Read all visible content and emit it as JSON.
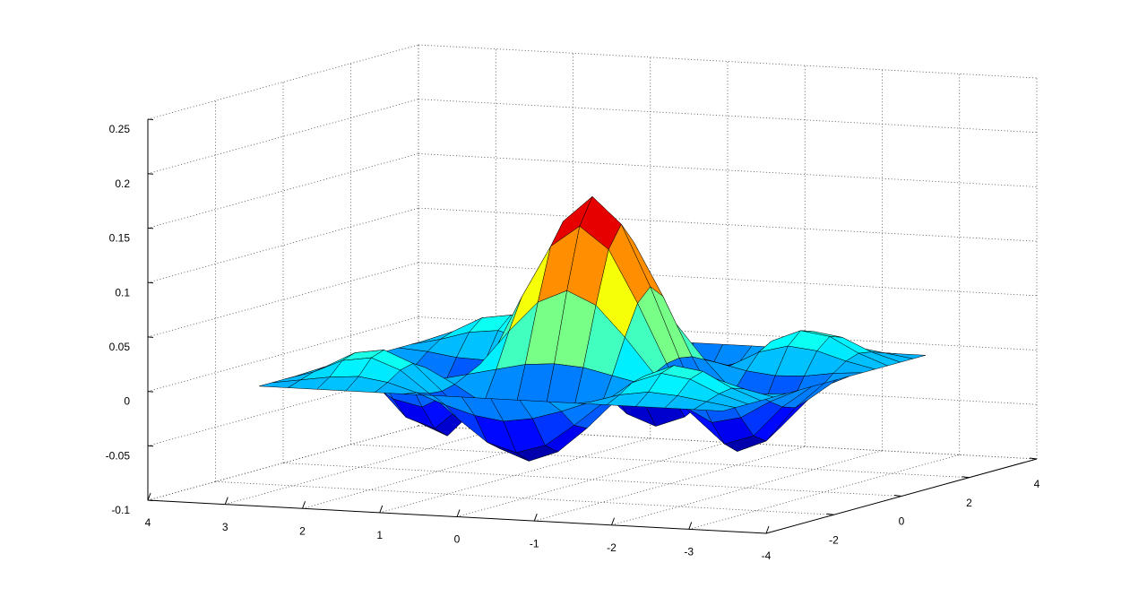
{
  "chart_data": {
    "type": "surface",
    "colormap": "jet",
    "grid": true,
    "x": [
      -3,
      -2.625,
      -2.25,
      -1.875,
      -1.5,
      -1.125,
      -0.75,
      -0.375,
      0,
      0.375,
      0.75,
      1.125,
      1.5,
      1.875,
      2.25,
      2.625,
      3
    ],
    "y": [
      -3,
      -2.625,
      -2.25,
      -1.875,
      -1.5,
      -1.125,
      -0.75,
      -0.375,
      0,
      0.375,
      0.75,
      1.125,
      1.5,
      1.875,
      2.25,
      2.625,
      3
    ],
    "z": [
      [
        0,
        0,
        0,
        0,
        0,
        0,
        0,
        0,
        0,
        0,
        0,
        0,
        0,
        0,
        0,
        0,
        0
      ],
      [
        0,
        0.004,
        0.008,
        0.01,
        0.006,
        -0.002,
        -0.012,
        -0.02,
        -0.024,
        -0.02,
        -0.012,
        -0.002,
        0.006,
        0.01,
        0.008,
        0.004,
        0
      ],
      [
        0,
        0.008,
        0.02,
        0.024,
        0.014,
        -0.006,
        -0.028,
        -0.048,
        -0.056,
        -0.048,
        -0.028,
        -0.006,
        0.014,
        0.024,
        0.02,
        0.008,
        0
      ],
      [
        0,
        0.01,
        0.024,
        0.028,
        0.017,
        -0.007,
        -0.034,
        -0.057,
        -0.067,
        -0.057,
        -0.034,
        -0.007,
        0.017,
        0.028,
        0.024,
        0.01,
        0
      ],
      [
        0,
        0.006,
        0.014,
        0.017,
        0.01,
        -0.004,
        -0.02,
        -0.034,
        -0.04,
        -0.034,
        -0.02,
        -0.004,
        0.01,
        0.017,
        0.014,
        0.006,
        0
      ],
      [
        0,
        -0.002,
        -0.006,
        -0.007,
        -0.004,
        0.002,
        0.008,
        0.014,
        0.016,
        0.014,
        0.008,
        0.002,
        -0.004,
        -0.007,
        -0.006,
        -0.002,
        0
      ],
      [
        0,
        -0.012,
        -0.028,
        -0.034,
        -0.02,
        0.008,
        0.04,
        0.068,
        0.08,
        0.068,
        0.04,
        0.008,
        -0.02,
        -0.034,
        -0.028,
        -0.012,
        0
      ],
      [
        0,
        -0.02,
        -0.048,
        -0.057,
        -0.034,
        0.014,
        0.068,
        0.116,
        0.136,
        0.116,
        0.068,
        0.014,
        -0.034,
        -0.057,
        -0.048,
        -0.02,
        0
      ],
      [
        0,
        -0.024,
        -0.056,
        -0.067,
        -0.04,
        0.016,
        0.08,
        0.136,
        0.16,
        0.136,
        0.08,
        0.016,
        -0.04,
        -0.067,
        -0.056,
        -0.024,
        0
      ],
      [
        0,
        -0.02,
        -0.048,
        -0.057,
        -0.034,
        0.014,
        0.068,
        0.116,
        0.136,
        0.116,
        0.068,
        0.014,
        -0.034,
        -0.057,
        -0.048,
        -0.02,
        0
      ],
      [
        0,
        -0.012,
        -0.028,
        -0.034,
        -0.02,
        0.008,
        0.04,
        0.068,
        0.08,
        0.068,
        0.04,
        0.008,
        -0.02,
        -0.034,
        -0.028,
        -0.012,
        0
      ],
      [
        0,
        -0.002,
        -0.006,
        -0.007,
        -0.004,
        0.002,
        0.008,
        0.014,
        0.016,
        0.014,
        0.008,
        0.002,
        -0.004,
        -0.007,
        -0.006,
        -0.002,
        0
      ],
      [
        0,
        0.006,
        0.014,
        0.017,
        0.01,
        -0.004,
        -0.02,
        -0.034,
        -0.04,
        -0.034,
        -0.02,
        -0.004,
        0.01,
        0.017,
        0.014,
        0.006,
        0
      ],
      [
        0,
        0.01,
        0.024,
        0.028,
        0.017,
        -0.007,
        -0.034,
        -0.057,
        -0.067,
        -0.057,
        -0.034,
        -0.007,
        0.017,
        0.028,
        0.024,
        0.01,
        0
      ],
      [
        0,
        0.008,
        0.02,
        0.024,
        0.014,
        -0.006,
        -0.028,
        -0.048,
        -0.056,
        -0.048,
        -0.028,
        -0.006,
        0.014,
        0.024,
        0.02,
        0.008,
        0
      ],
      [
        0,
        0.004,
        0.008,
        0.01,
        0.006,
        -0.002,
        -0.012,
        -0.02,
        -0.024,
        -0.02,
        -0.012,
        -0.002,
        0.006,
        0.01,
        0.008,
        0.004,
        0
      ],
      [
        0,
        0,
        0,
        0,
        0,
        0,
        0,
        0,
        0,
        0,
        0,
        0,
        0,
        0,
        0,
        0,
        0
      ]
    ],
    "xlim": [
      -4,
      4
    ],
    "ylim": [
      -4,
      4
    ],
    "zlim": [
      -0.1,
      0.25
    ],
    "xticks": [
      -4,
      -3,
      -2,
      -1,
      0,
      1,
      2,
      3,
      4
    ],
    "yticks": [
      -2,
      0,
      2,
      4
    ],
    "zticks": [
      -0.1,
      -0.05,
      0,
      0.05,
      0.1,
      0.15,
      0.2,
      0.25
    ]
  }
}
